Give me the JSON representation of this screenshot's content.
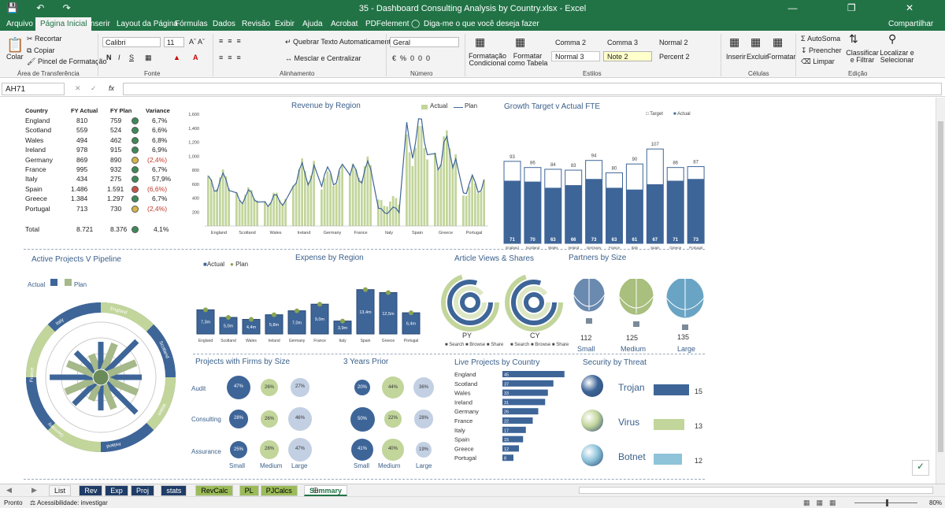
{
  "window": {
    "title": "35 - Dashboard Consulting Analysis by Country.xlsx - Excel",
    "qa": "💾 ↶ ↷",
    "controls": "— ❐ ✕"
  },
  "tabs": [
    "Arquivo",
    "Página Inicial",
    "Inserir",
    "Layout da Página",
    "Fórmulas",
    "Dados",
    "Revisão",
    "Exibir",
    "Ajuda",
    "Acrobat",
    "PDFelement"
  ],
  "tell_me": "Diga-me o que você deseja fazer",
  "share": "Compartilhar",
  "ribbon": {
    "paste": "Colar",
    "cut": "Recortar",
    "copy": "Copiar",
    "format_painter": "Pincel de Formatação",
    "font": "Calibri",
    "size": "11",
    "bold": "N",
    "italic": "I",
    "underline": "S",
    "wrap": "Quebrar Texto Automaticamente",
    "merge": "Mesclar e Centralizar",
    "numfmt": "Geral",
    "cond_fmt": "Formatação Condicional",
    "fmt_table": "Formatar como Tabela",
    "styles": [
      "Comma 2",
      "Comma 3",
      "Normal 2",
      "Normal 3",
      "Note 2",
      "Percent 2"
    ],
    "insert": "Inserir",
    "delete": "Excluir",
    "format": "Formatar",
    "autosum": "AutoSoma",
    "fill": "Preencher",
    "clear": "Limpar",
    "sort": "Classificar e Filtrar",
    "find": "Localizar e Selecionar",
    "groups": [
      "Área de Transferência",
      "Fonte",
      "Alinhamento",
      "Número",
      "Estilos",
      "Células",
      "Edição"
    ]
  },
  "namebox": "AH71",
  "fx": "fx",
  "table": {
    "headers": [
      "Country",
      "FY Actual",
      "FY Plan",
      "Variance"
    ],
    "rows": [
      {
        "c": "England",
        "a": "810",
        "p": "759",
        "v": "6,7%",
        "s": "g"
      },
      {
        "c": "Scotland",
        "a": "559",
        "p": "524",
        "v": "6,6%",
        "s": "g"
      },
      {
        "c": "Wales",
        "a": "494",
        "p": "462",
        "v": "6,8%",
        "s": "g"
      },
      {
        "c": "Ireland",
        "a": "978",
        "p": "915",
        "v": "6,9%",
        "s": "g"
      },
      {
        "c": "Germany",
        "a": "869",
        "p": "890",
        "v": "(2,4%)",
        "s": "y"
      },
      {
        "c": "France",
        "a": "995",
        "p": "932",
        "v": "6,7%",
        "s": "g"
      },
      {
        "c": "Italy",
        "a": "434",
        "p": "275",
        "v": "57,9%",
        "s": "g"
      },
      {
        "c": "Spain",
        "a": "1.486",
        "p": "1.591",
        "v": "(6,6%)",
        "s": "r"
      },
      {
        "c": "Greece",
        "a": "1.384",
        "p": "1.297",
        "v": "6,7%",
        "s": "g"
      },
      {
        "c": "Portugal",
        "a": "713",
        "p": "730",
        "v": "(2,4%)",
        "s": "y"
      }
    ],
    "total": {
      "c": "Total",
      "a": "8.721",
      "p": "8.376",
      "v": "4,1%"
    }
  },
  "titles": {
    "revenue": "Revenue by Region",
    "growth": "Growth Target v Actual FTE",
    "active": "Active Projects V Pipeline",
    "expense": "Expense by Region",
    "article": "Article Views & Shares",
    "partners": "Partners by Size",
    "firms": "Projects with Firms by Size",
    "prior": "3 Years Prior",
    "live": "Live Projects by Country",
    "security": "Security by Threat"
  },
  "colors": {
    "dark": "#3e6598",
    "light": "#c2d59b",
    "excel": "#217346"
  },
  "chart_data": [
    {
      "type": "bar",
      "title": "Revenue by Region",
      "legend": [
        "Actual",
        "Plan"
      ],
      "ylim": [
        0,
        1600
      ],
      "yticks": [
        "200",
        "400",
        "600",
        "800",
        "1,000",
        "1,200",
        "1,400",
        "1,600"
      ],
      "categories": [
        "England",
        "Scotland",
        "Wales",
        "Ireland",
        "Germany",
        "France",
        "Italy",
        "Spain",
        "Greece",
        "Portugal"
      ],
      "series": [
        {
          "name": "Actual",
          "values": [
            810,
            559,
            494,
            978,
            869,
            995,
            434,
            1486,
            1384,
            713
          ]
        },
        {
          "name": "Plan",
          "values": [
            759,
            524,
            462,
            915,
            890,
            932,
            275,
            1591,
            1297,
            730
          ]
        }
      ]
    },
    {
      "type": "bar",
      "title": "Growth Target v Actual FTE",
      "legend": [
        "Target",
        "Actual"
      ],
      "categories": [
        "England",
        "Scotland",
        "Wales",
        "Ireland",
        "Germany",
        "France",
        "Italy",
        "Spain",
        "Greece",
        "Portugal"
      ],
      "series": [
        {
          "name": "Target",
          "values": [
            93,
            86,
            84,
            83,
            94,
            80,
            90,
            107,
            86,
            87
          ]
        },
        {
          "name": "Actual",
          "values": [
            71,
            70,
            63,
            66,
            73,
            63,
            61,
            67,
            71,
            73
          ]
        }
      ]
    },
    {
      "type": "bar",
      "title": "Expense by Region",
      "legend": [
        "Actual",
        "Plan"
      ],
      "categories": [
        "England",
        "Scotland",
        "Wales",
        "Ireland",
        "Germany",
        "France",
        "Italy",
        "Spain",
        "Greece",
        "Portugal"
      ],
      "labels": [
        "7,3m",
        "5,0m",
        "4,4m",
        "5,8m",
        "7,0m",
        "9,0m",
        "3,9m",
        "13,4m",
        "12,5m",
        "6,4m"
      ],
      "series": [
        {
          "name": "Actual",
          "values": [
            7.3,
            5.0,
            4.4,
            5.8,
            7.0,
            9.0,
            3.9,
            13.4,
            12.5,
            6.4
          ]
        }
      ]
    },
    {
      "type": "bar",
      "title": "Live Projects by Country",
      "categories": [
        "England",
        "Scotland",
        "Wales",
        "Ireland",
        "Germany",
        "France",
        "Italy",
        "Spain",
        "Greece",
        "Portugal"
      ],
      "series": [
        {
          "values": [
            45,
            37,
            33,
            31,
            26,
            22,
            17,
            15,
            12,
            8
          ]
        }
      ]
    }
  ],
  "active": {
    "legend": [
      "Actual",
      "Plan"
    ],
    "countries": [
      "England",
      "Scotland",
      "Wales",
      "Ireland",
      "Germany",
      "France",
      "Italy"
    ]
  },
  "article": {
    "labels": [
      "PY",
      "CY"
    ],
    "legend": "■ Search ■ Browse ■ Share"
  },
  "partners": {
    "values": [
      "112",
      "125",
      "135"
    ],
    "labels": [
      "Small",
      "Medium",
      "Large"
    ]
  },
  "firms": {
    "rows": [
      "Audit",
      "Consulting",
      "Assurance"
    ],
    "cols": [
      "Small",
      "Medium",
      "Large"
    ],
    "values": [
      [
        "47%",
        "26%",
        "27%"
      ],
      [
        "28%",
        "26%",
        "46%"
      ],
      [
        "25%",
        "28%",
        "47%"
      ]
    ]
  },
  "prior": {
    "values": [
      [
        "20%",
        "44%",
        "36%"
      ],
      [
        "50%",
        "22%",
        "28%"
      ],
      [
        "41%",
        "40%",
        "19%"
      ]
    ]
  },
  "security": {
    "items": [
      {
        "name": "Trojan",
        "value": "15"
      },
      {
        "name": "Virus",
        "value": "13"
      },
      {
        "name": "Botnet",
        "value": "12"
      }
    ]
  },
  "sheets": [
    "List",
    "Rev",
    "Exp",
    "Proj",
    "stats",
    "RevCalc",
    "PL",
    "PJCalcs",
    "Summary"
  ],
  "status": {
    "ready": "Pronto",
    "access": "Acessibilidade: investigar",
    "zoom": "80%"
  }
}
